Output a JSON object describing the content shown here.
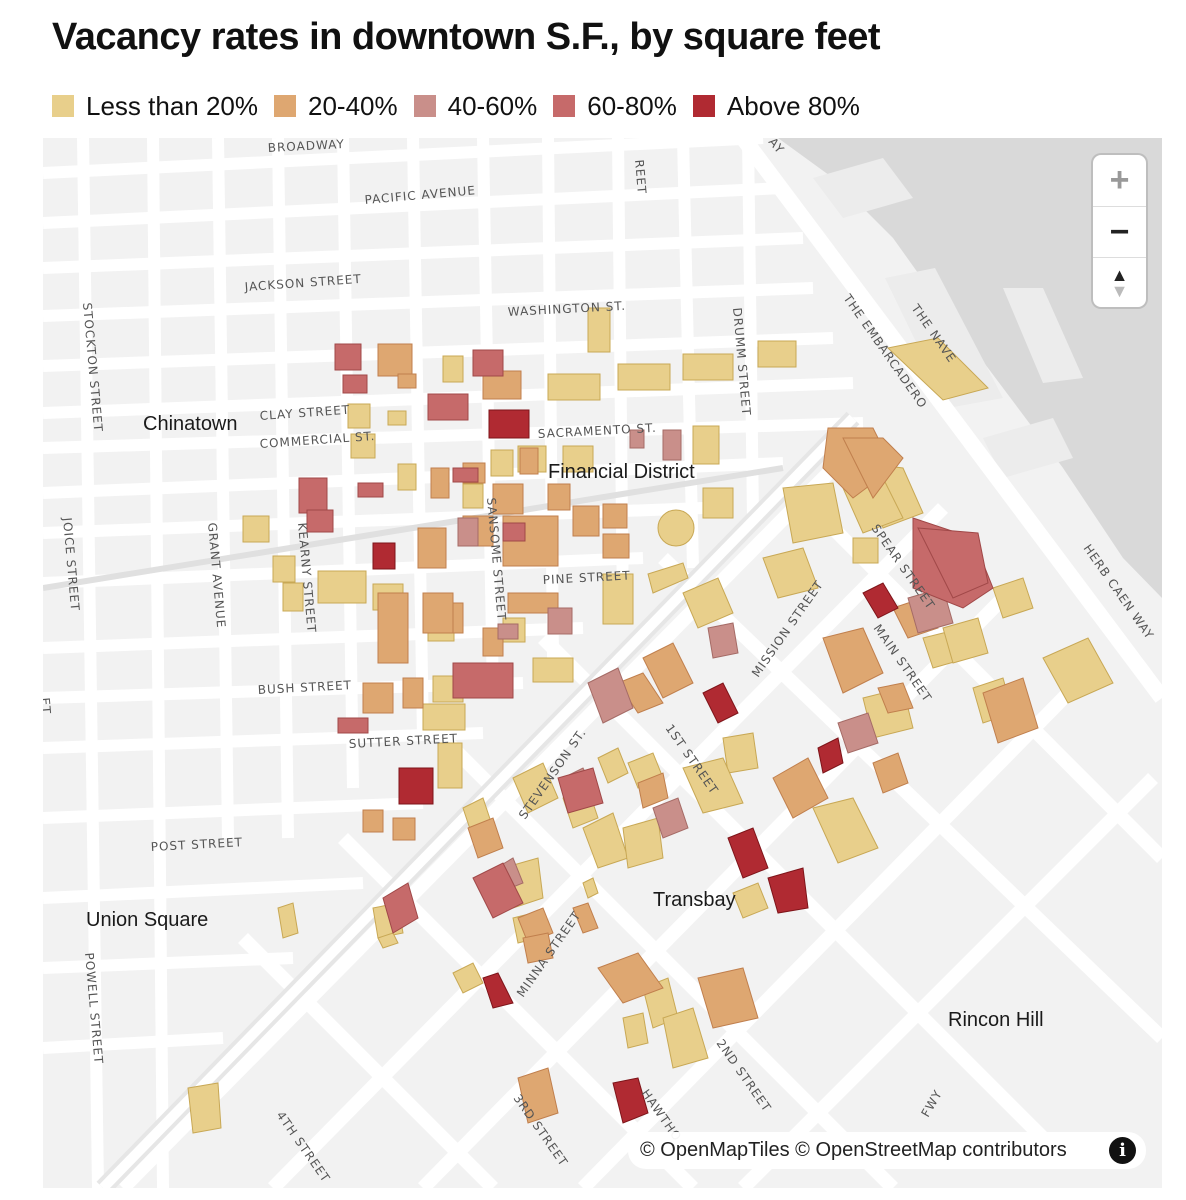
{
  "title": "Vacancy rates in downtown S.F., by square feet",
  "legend": [
    {
      "label": "Less than 20%",
      "color": "#e8cf8b"
    },
    {
      "label": "20-40%",
      "color": "#dea771"
    },
    {
      "label": "40-60%",
      "color": "#c98f8a"
    },
    {
      "label": "60-80%",
      "color": "#c66a6a"
    },
    {
      "label": "Above 80%",
      "color": "#b02a32"
    }
  ],
  "map": {
    "neighborhoods": [
      "Chinatown",
      "Financial District",
      "Union Square",
      "Transbay",
      "Rincon Hill"
    ],
    "streets": [
      "BROADWAY",
      "PACIFIC AVENUE",
      "JACKSON STREET",
      "WASHINGTON ST.",
      "CLAY STREET",
      "COMMERCIAL ST.",
      "SACRAMENTO ST.",
      "PINE STREET",
      "BUSH STREET",
      "SUTTER STREET",
      "POST STREET",
      "STOCKTON STREET",
      "JOICE STREET",
      "GRANT AVENUE",
      "KEARNY STREET",
      "SANSOME STREET",
      "DRUMM STREET",
      "THE EMBARCADERO",
      "THE NAVE",
      "HERB CAEN WAY",
      "SPEAR STREET",
      "MAIN STREET",
      "MISSION STREET",
      "1ST STREET",
      "STEVENSON ST.",
      "MINNA STREET",
      "2ND STREET",
      "3RD STREET",
      "4TH STREET",
      "POWELL STREET",
      "HAWTHO",
      "FWY",
      "REET",
      "AY",
      "ET"
    ]
  },
  "controls": {
    "zoom_in": "+",
    "zoom_out": "−",
    "compass": "▲"
  },
  "attribution": {
    "text": "© OpenMapTiles © OpenStreetMap contributors",
    "info_icon": "i"
  }
}
